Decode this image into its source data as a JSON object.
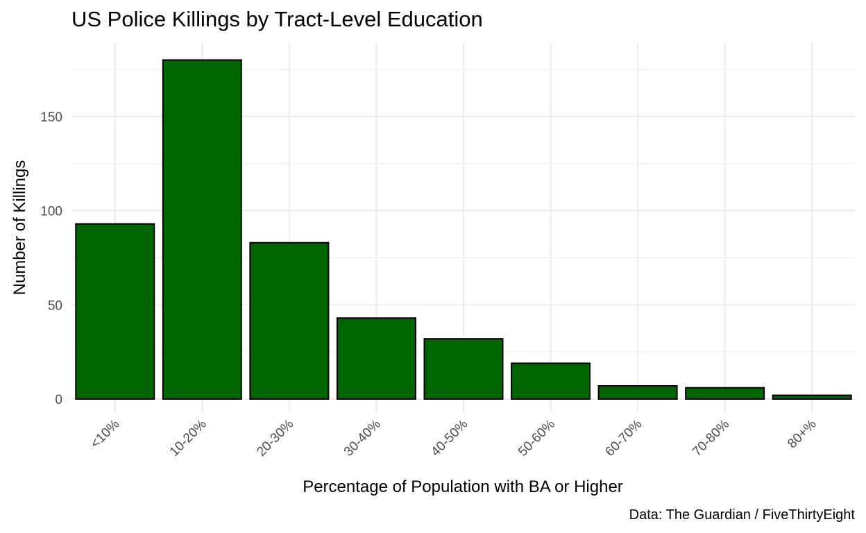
{
  "chart_data": {
    "type": "bar",
    "title": "US Police Killings by Tract-Level Education",
    "caption": "Data: The Guardian / FiveThirtyEight",
    "xlabel": "Percentage of Population with BA or Higher",
    "ylabel": "Number of Killings",
    "categories": [
      "<10%",
      "10-20%",
      "20-30%",
      "30-40%",
      "40-50%",
      "50-60%",
      "60-70%",
      "70-80%",
      "80+%"
    ],
    "values": [
      93,
      180,
      83,
      43,
      32,
      19,
      7,
      6,
      2
    ],
    "yticks": [
      0,
      50,
      100,
      150
    ],
    "ylim": [
      -7,
      189
    ],
    "grid": true,
    "legend": "none",
    "colors": {
      "bar_fill": "#006400",
      "bar_stroke": "#000000",
      "grid": "#ebebeb"
    }
  }
}
